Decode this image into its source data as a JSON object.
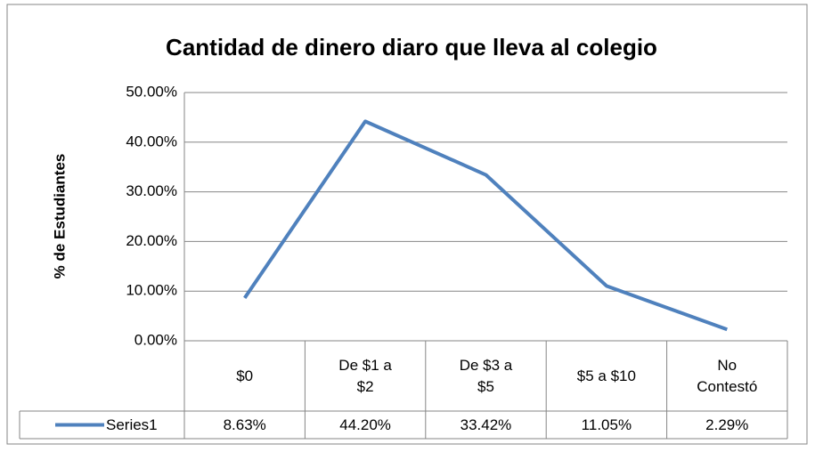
{
  "chart_data": {
    "type": "line",
    "title": "Cantidad de dinero diaro que lleva al colegio",
    "y_label": "% de Estudiantes",
    "categories": [
      "$0",
      "De $1 a $2",
      "De $3 a $5",
      "$5 a $10",
      "No Contestó"
    ],
    "series": [
      {
        "name": "Series1",
        "color": "#4f81bd",
        "values": [
          8.63,
          44.2,
          33.42,
          11.05,
          2.29
        ],
        "value_labels": [
          "8.63%",
          "44.20%",
          "33.42%",
          "11.05%",
          "2.29%"
        ]
      }
    ],
    "ylim": [
      0,
      50
    ],
    "yticks": [
      {
        "value": 0,
        "label": "0.00%"
      },
      {
        "value": 10,
        "label": "10.00%"
      },
      {
        "value": 20,
        "label": "20.00%"
      },
      {
        "value": 30,
        "label": "30.00%"
      },
      {
        "value": 40,
        "label": "40.00%"
      },
      {
        "value": 50,
        "label": "50.00%"
      }
    ],
    "grid": true,
    "data_table": true
  }
}
